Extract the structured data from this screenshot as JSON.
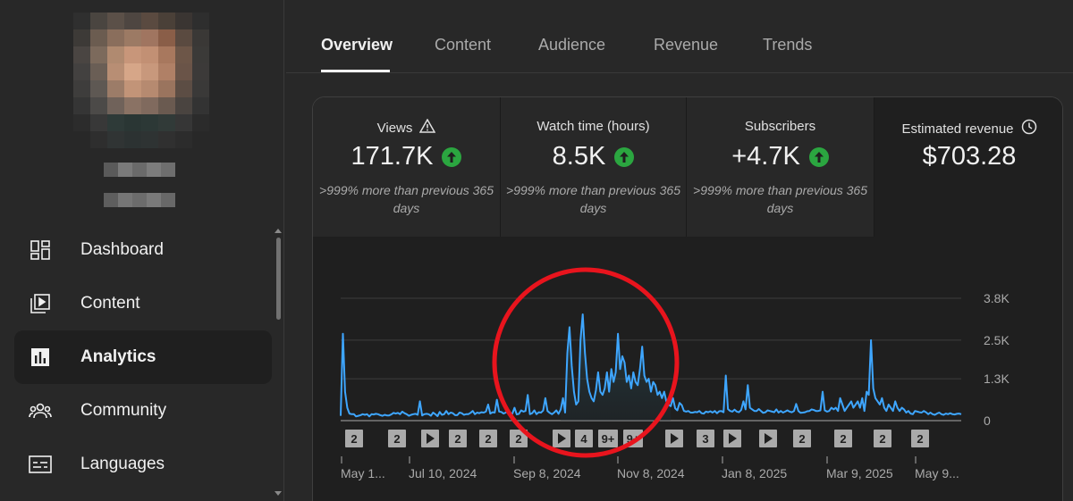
{
  "sidebar": {
    "items": [
      {
        "label": "Dashboard",
        "icon": "dashboard-icon",
        "active": false
      },
      {
        "label": "Content",
        "icon": "content-icon",
        "active": false
      },
      {
        "label": "Analytics",
        "icon": "analytics-icon",
        "active": true
      },
      {
        "label": "Community",
        "icon": "community-icon",
        "active": false
      },
      {
        "label": "Languages",
        "icon": "languages-icon",
        "active": false
      }
    ]
  },
  "tabs": [
    {
      "label": "Overview",
      "active": true
    },
    {
      "label": "Content",
      "active": false
    },
    {
      "label": "Audience",
      "active": false
    },
    {
      "label": "Revenue",
      "active": false
    },
    {
      "label": "Trends",
      "active": false
    }
  ],
  "metrics": [
    {
      "label": "Views",
      "value": "171.7K",
      "note": ">999% more than previous 365 days",
      "icon": "warning-icon",
      "trend": "up"
    },
    {
      "label": "Watch time (hours)",
      "value": "8.5K",
      "note": ">999% more than previous 365 days",
      "trend": "up"
    },
    {
      "label": "Subscribers",
      "value": "+4.7K",
      "note": ">999% more than previous 365 days",
      "trend": "up"
    },
    {
      "label": "Estimated revenue",
      "value": "$703.28",
      "icon": "clock-icon"
    }
  ],
  "colors": {
    "accent_line": "#3ea6ff",
    "trend_up": "#2ba640",
    "annotation_circle": "#e8141d"
  },
  "chart_data": {
    "type": "line",
    "x_ticks": [
      "May 1...",
      "Jul 10, 2024",
      "Sep 8, 2024",
      "Nov 8, 2024",
      "Jan 8, 2025",
      "Mar 9, 2025",
      "May 9..."
    ],
    "y_ticks": [
      "3.8K",
      "2.5K",
      "1.3K",
      "0"
    ],
    "ylim": [
      0,
      3800
    ],
    "grid": true,
    "series": [
      {
        "values": [
          150,
          2700,
          900,
          400,
          220,
          200,
          200,
          130,
          150,
          170,
          200,
          180,
          200,
          130,
          200,
          190,
          210,
          200,
          170,
          150,
          180,
          160,
          160,
          190,
          240,
          220,
          240,
          200,
          280,
          230,
          200,
          150,
          180,
          200,
          210,
          180,
          600,
          160,
          200,
          210,
          200,
          150,
          250,
          200,
          140,
          270,
          180,
          200,
          300,
          200,
          250,
          230,
          170,
          170,
          250,
          230,
          180,
          200,
          200,
          240,
          300,
          200,
          250,
          230,
          260,
          250,
          280,
          500,
          220,
          260,
          250,
          650,
          280,
          270,
          220,
          250,
          280,
          210,
          220,
          400,
          190,
          210,
          320,
          280,
          300,
          800,
          200,
          230,
          320,
          200,
          260,
          250,
          310,
          700,
          300,
          240,
          200,
          250,
          320,
          210,
          350,
          700,
          250,
          2100,
          2900,
          1700,
          900,
          500,
          600,
          2500,
          3300,
          2100,
          1300,
          900,
          700,
          600,
          950,
          1500,
          900,
          800,
          1000,
          1500,
          900,
          1600,
          1200,
          1500,
          2700,
          1600,
          2000,
          1800,
          1200,
          1400,
          1000,
          1500,
          1200,
          1100,
          1600,
          2300,
          1400,
          1200,
          1300,
          900,
          1200,
          1100,
          800,
          900,
          700,
          900,
          600,
          500,
          450,
          700,
          380,
          320,
          550,
          480,
          300,
          280,
          300,
          250,
          250,
          270,
          260,
          300,
          230,
          220,
          280,
          260,
          290,
          250,
          300,
          230,
          290,
          300,
          260,
          1400,
          360,
          300,
          280,
          340,
          280,
          260,
          330,
          600,
          350,
          1100,
          400,
          350,
          300,
          300,
          360,
          300,
          240,
          260,
          320,
          300,
          280,
          260,
          350,
          250,
          300,
          250,
          280,
          320,
          280,
          260,
          300,
          520,
          300,
          240,
          250,
          260,
          290,
          300,
          350,
          330,
          300,
          300,
          320,
          900,
          320,
          280,
          300,
          400,
          350,
          400,
          300,
          700,
          500,
          300,
          400,
          500,
          600,
          400,
          500,
          600,
          400,
          700,
          300,
          900,
          800,
          2500,
          1000,
          700,
          600,
          500,
          700,
          400,
          300,
          500,
          400,
          300,
          600,
          400,
          300,
          400,
          350,
          250,
          300,
          220,
          200,
          300,
          280,
          260,
          250,
          300,
          260,
          200,
          250,
          200,
          180,
          220,
          250,
          200,
          180,
          220,
          200,
          230,
          200,
          190,
          210,
          220,
          200
        ]
      }
    ],
    "annotations": [
      "2",
      "2",
      "2",
      "2",
      "2",
      "4",
      "9+",
      "9+",
      "3",
      "2",
      "2",
      "2",
      "2"
    ],
    "annotation_types": [
      "num",
      "num",
      "play",
      "num",
      "num",
      "num",
      "play",
      "num",
      "num",
      "num",
      "play",
      "play",
      "num",
      "play",
      "play",
      "num",
      "num",
      "num",
      "num"
    ]
  }
}
